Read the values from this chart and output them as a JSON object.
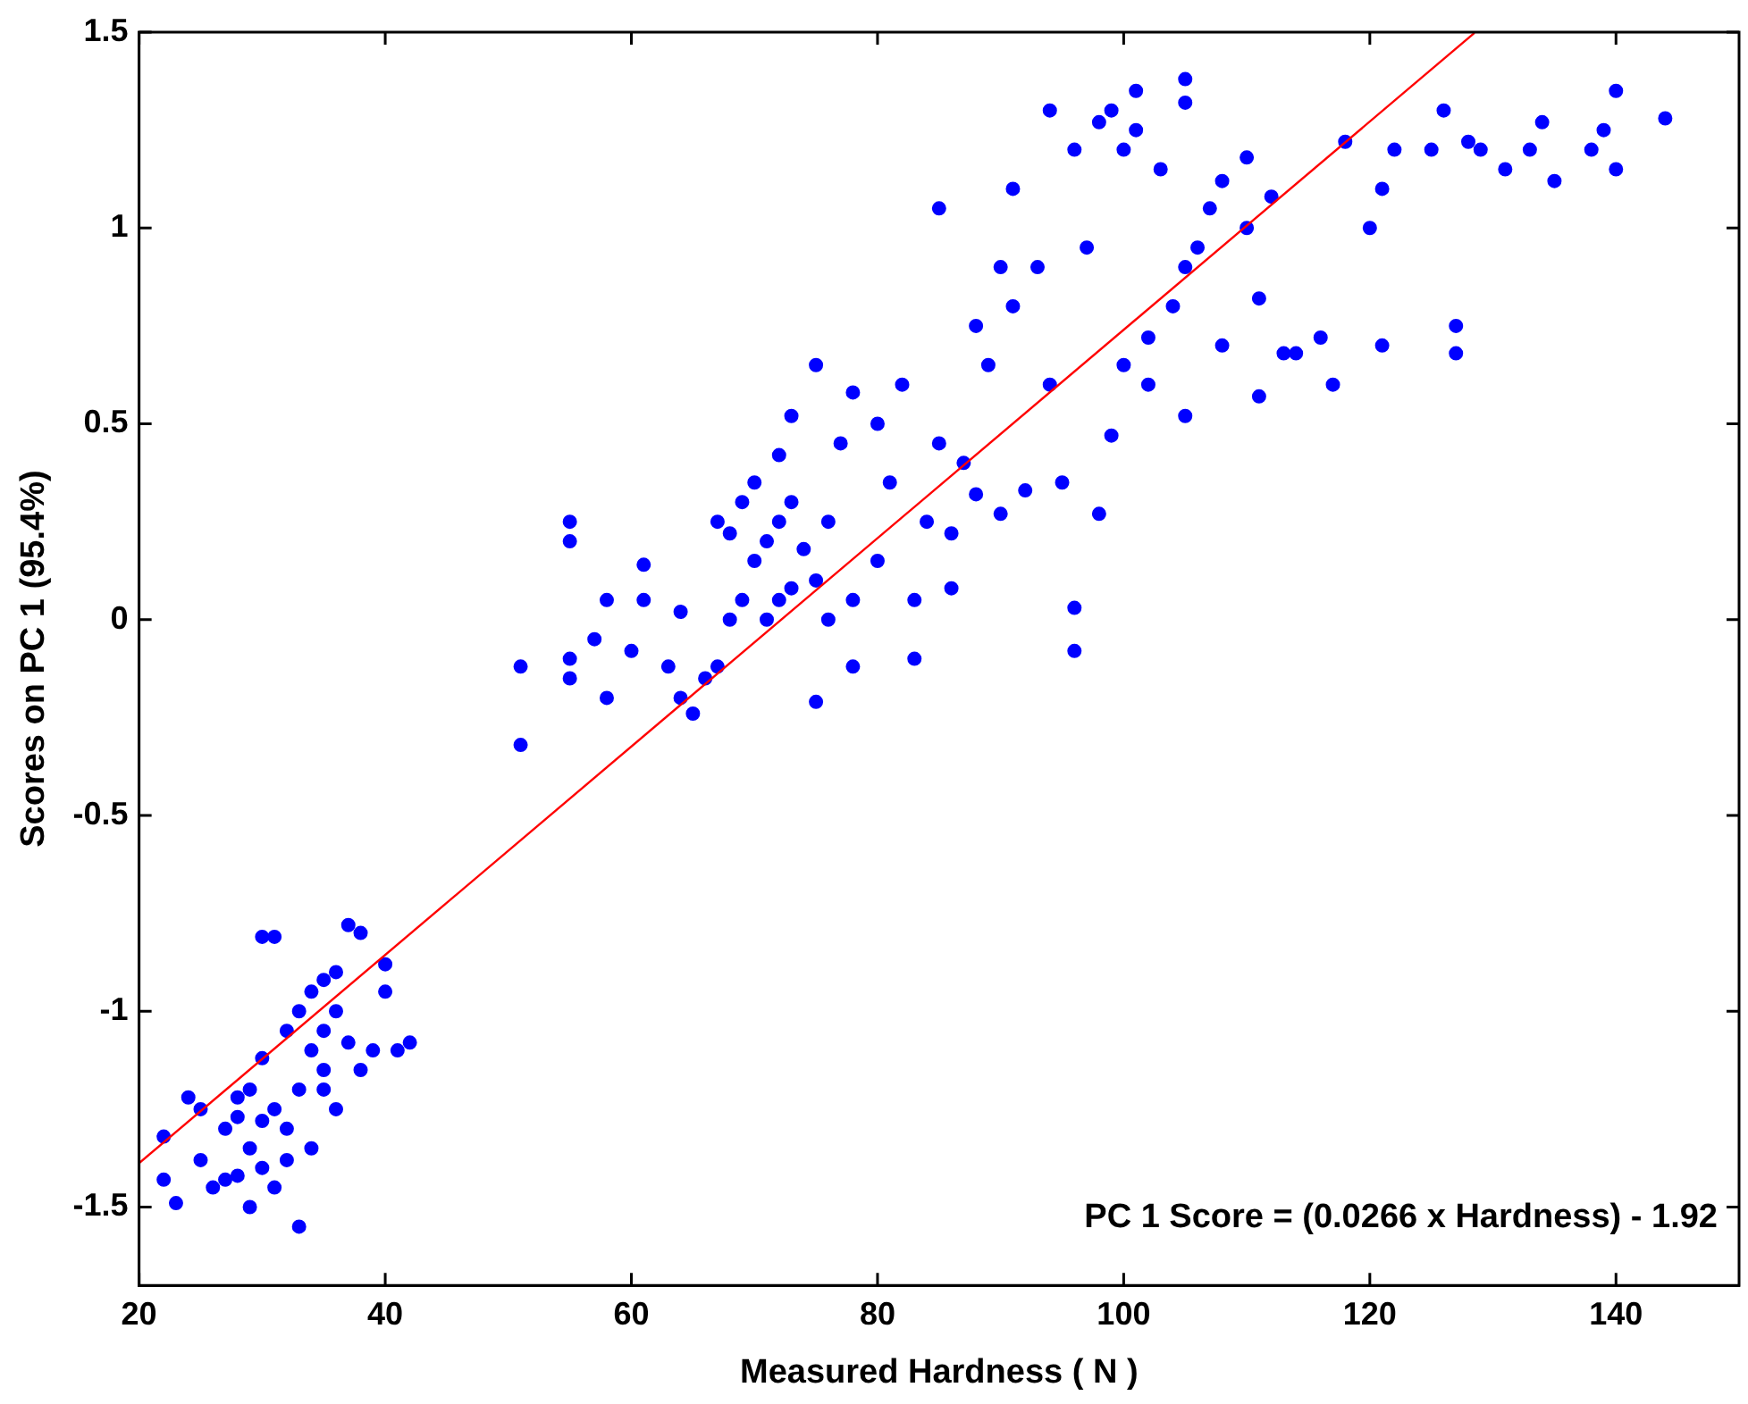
{
  "chart_data": {
    "type": "scatter",
    "xlabel": "Measured Hardness ( N )",
    "ylabel": "Scores on PC 1 (95.4%)",
    "annotations": [
      "PC 1 Score = (0.0266 x Hardness) - 1.92"
    ],
    "xlim": [
      20,
      150
    ],
    "xticks": [
      20,
      40,
      60,
      80,
      100,
      120,
      140
    ],
    "ylim": [
      -1.7,
      1.5
    ],
    "yticks": [
      -1.5,
      -1,
      -0.5,
      0,
      0.5,
      1,
      1.5
    ],
    "grid": false,
    "legend": false,
    "marker": "circle",
    "series": [
      {
        "color": "#0000ff",
        "x": [
          22,
          22,
          23,
          24,
          25,
          25,
          26,
          27,
          27,
          28,
          28,
          28,
          29,
          29,
          29,
          30,
          30,
          30,
          30,
          31,
          31,
          31,
          32,
          32,
          32,
          33,
          33,
          33,
          34,
          34,
          34,
          35,
          35,
          35,
          35,
          36,
          36,
          36,
          37,
          37,
          38,
          38,
          39,
          40,
          40,
          41,
          42,
          51,
          51,
          55,
          55,
          55,
          55,
          57,
          58,
          58,
          60,
          61,
          61,
          63,
          64,
          64,
          65,
          66,
          67,
          67,
          68,
          68,
          69,
          69,
          70,
          70,
          71,
          71,
          72,
          72,
          72,
          73,
          73,
          73,
          74,
          75,
          75,
          75,
          76,
          76,
          77,
          78,
          78,
          78,
          80,
          80,
          81,
          82,
          83,
          83,
          84,
          85,
          85,
          86,
          86,
          87,
          88,
          88,
          89,
          90,
          90,
          91,
          91,
          92,
          93,
          94,
          94,
          95,
          96,
          96,
          96,
          97,
          98,
          98,
          99,
          99,
          100,
          100,
          101,
          101,
          102,
          102,
          103,
          104,
          105,
          105,
          105,
          105,
          106,
          107,
          108,
          108,
          110,
          110,
          111,
          111,
          112,
          113,
          114,
          116,
          117,
          118,
          120,
          121,
          121,
          122,
          125,
          126,
          127,
          127,
          128,
          129,
          131,
          133,
          134,
          135,
          138,
          139,
          140,
          140,
          144
        ],
        "values": [
          -1.32,
          -1.43,
          -1.49,
          -1.22,
          -1.25,
          -1.38,
          -1.45,
          -1.43,
          -1.3,
          -1.42,
          -1.22,
          -1.27,
          -1.35,
          -1.2,
          -1.5,
          -1.28,
          -1.12,
          -1.4,
          -0.81,
          -0.81,
          -1.25,
          -1.45,
          -1.3,
          -1.05,
          -1.38,
          -1.55,
          -1.2,
          -1,
          -1.1,
          -0.95,
          -1.35,
          -0.92,
          -1.05,
          -1.2,
          -1.15,
          -1,
          -1.25,
          -0.9,
          -0.78,
          -1.08,
          -0.8,
          -1.15,
          -1.1,
          -0.88,
          -0.95,
          -1.1,
          -1.08,
          -0.12,
          -0.32,
          0.25,
          0.2,
          -0.1,
          -0.15,
          -0.05,
          0.05,
          -0.2,
          -0.08,
          0.14,
          0.05,
          -0.12,
          -0.2,
          0.02,
          -0.24,
          -0.15,
          0.25,
          -0.12,
          0,
          0.22,
          0.3,
          0.05,
          0.15,
          0.35,
          0,
          0.2,
          0.42,
          0.25,
          0.05,
          0.52,
          0.08,
          0.3,
          0.18,
          0.65,
          0.1,
          -0.21,
          0,
          0.25,
          0.45,
          0.58,
          -0.12,
          0.05,
          0.5,
          0.15,
          0.35,
          0.6,
          0.05,
          -0.1,
          0.25,
          1.05,
          0.45,
          0.22,
          0.08,
          0.4,
          0.75,
          0.32,
          0.65,
          0.9,
          0.27,
          1.1,
          0.8,
          0.33,
          0.9,
          0.6,
          1.3,
          0.35,
          1.2,
          0.03,
          -0.08,
          0.95,
          0.27,
          1.27,
          0.47,
          1.3,
          0.65,
          1.2,
          1.35,
          1.25,
          0.72,
          0.6,
          1.15,
          0.8,
          1.38,
          1.32,
          0.9,
          0.52,
          0.95,
          1.05,
          1.12,
          0.7,
          1,
          1.18,
          0.82,
          0.57,
          1.08,
          0.68,
          0.68,
          0.72,
          0.6,
          1.22,
          1,
          1.1,
          0.7,
          1.2,
          1.2,
          1.3,
          0.75,
          0.68,
          1.22,
          1.2,
          1.15,
          1.2,
          1.27,
          1.12,
          1.2,
          1.25,
          1.35,
          1.15,
          1.28
        ]
      },
      {
        "type": "line",
        "color": "#ff0000",
        "x": [
          20,
          128.5
        ],
        "values": [
          -1.388,
          1.498
        ],
        "marker": "none"
      }
    ]
  }
}
